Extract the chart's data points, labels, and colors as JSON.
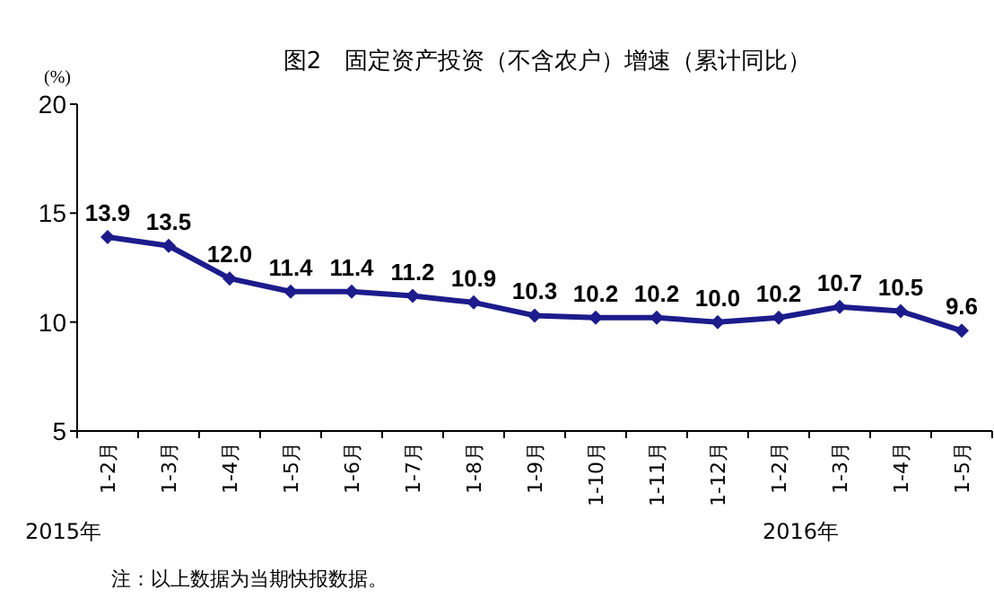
{
  "chart_data": {
    "type": "line",
    "title": "图2　固定资产投资（不含农户）增速（累计同比）",
    "ylabel": "(%)",
    "categories": [
      "1-2月",
      "1-3月",
      "1-4月",
      "1-5月",
      "1-6月",
      "1-7月",
      "1-8月",
      "1-9月",
      "1-10月",
      "1-11月",
      "1-12月",
      "1-2月",
      "1-3月",
      "1-4月",
      "1-5月"
    ],
    "series": [
      {
        "color": "#1c1c8c",
        "values": [
          13.9,
          13.5,
          12.0,
          11.4,
          11.4,
          11.2,
          10.9,
          10.3,
          10.2,
          10.2,
          10.0,
          10.2,
          10.7,
          10.5,
          9.6
        ],
        "value_labels": [
          "13.9",
          "13.5",
          "12.0",
          "11.4",
          "11.4",
          "11.2",
          "10.9",
          "10.3",
          "10.2",
          "10.2",
          "10.0",
          "10.2",
          "10.7",
          "10.5",
          "9.6"
        ]
      }
    ],
    "ylim": [
      5,
      20
    ],
    "yticks": [
      5,
      10,
      15,
      20
    ],
    "marker": "diamond",
    "line_style": "solid",
    "grid": false,
    "annotations": [
      "2015年",
      "2016年",
      "注：以上数据为当期快报数据。"
    ]
  }
}
